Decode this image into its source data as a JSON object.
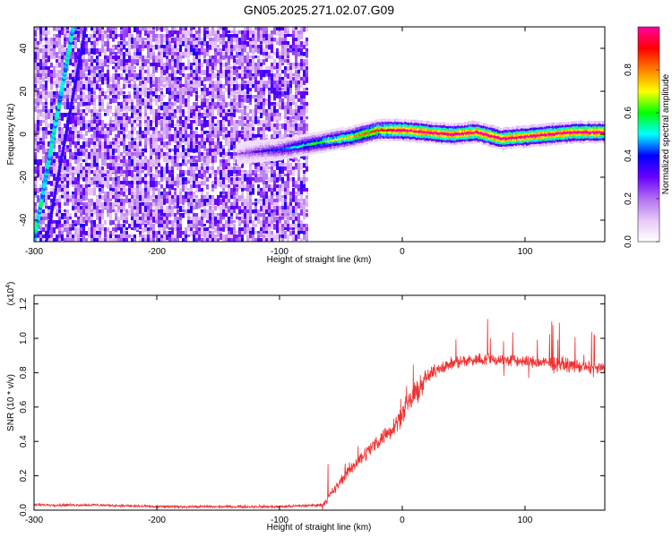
{
  "figure": {
    "title": "GN05.2025.271.02.07.G09"
  },
  "chart_data": [
    {
      "type": "heatmap",
      "title": "GN05.2025.271.02.07.G09",
      "xlabel": "Height of straight line (km)",
      "ylabel": "Frequency (Hz)",
      "xlim": [
        -300,
        165
      ],
      "ylim": [
        -50,
        50
      ],
      "x_ticks": [
        "-300",
        "-200",
        "-100",
        "0",
        "100"
      ],
      "y_ticks": [
        "-40",
        "-20",
        "0",
        "20",
        "40"
      ],
      "colorbar": {
        "label": "Normalized spectral amplitude",
        "range": [
          0,
          1
        ],
        "ticks": [
          "0.0",
          "0.2",
          "0.4",
          "0.6",
          "0.8"
        ],
        "colors": [
          "#ffffff",
          "#e8c8f8",
          "#b070f0",
          "#6a00ff",
          "#0000ff",
          "#00ffff",
          "#00ff00",
          "#ffff00",
          "#ff8000",
          "#ff0000",
          "#ff00a0"
        ]
      },
      "noise_region_x": [
        -300,
        -78
      ],
      "ridge": [
        {
          "x": -135,
          "y": -9
        },
        {
          "x": -120,
          "y": -8
        },
        {
          "x": -100,
          "y": -7
        },
        {
          "x": -80,
          "y": -5
        },
        {
          "x": -60,
          "y": -3
        },
        {
          "x": -40,
          "y": -1
        },
        {
          "x": -20,
          "y": 2
        },
        {
          "x": 0,
          "y": 2
        },
        {
          "x": 20,
          "y": 1
        },
        {
          "x": 40,
          "y": 0
        },
        {
          "x": 60,
          "y": 1
        },
        {
          "x": 80,
          "y": -2
        },
        {
          "x": 100,
          "y": -1
        },
        {
          "x": 120,
          "y": 0
        },
        {
          "x": 140,
          "y": 1
        },
        {
          "x": 165,
          "y": 1
        }
      ],
      "diagonal_streak": [
        {
          "x": -300,
          "y": -50
        },
        {
          "x": -268,
          "y": 50
        }
      ]
    },
    {
      "type": "line",
      "xlabel": "Height of straight line (km)",
      "ylabel": "SNR (10 * v/v)",
      "y_multiplier_label": "(x10",
      "y_multiplier_exp": "4",
      "xlim": [
        -300,
        165
      ],
      "ylim": [
        0,
        1.25
      ],
      "x_ticks": [
        "-300",
        "-200",
        "-100",
        "0",
        "100"
      ],
      "y_ticks": [
        "0.0",
        "0.2",
        "0.4",
        "0.6",
        "0.8",
        "1.0",
        "1.2"
      ],
      "series_color": "#f03030",
      "envelope": [
        {
          "x": -300,
          "y": 0.03
        },
        {
          "x": -250,
          "y": 0.03
        },
        {
          "x": -200,
          "y": 0.02
        },
        {
          "x": -150,
          "y": 0.02
        },
        {
          "x": -100,
          "y": 0.02
        },
        {
          "x": -65,
          "y": 0.03
        },
        {
          "x": -55,
          "y": 0.12
        },
        {
          "x": -45,
          "y": 0.22
        },
        {
          "x": -30,
          "y": 0.33
        },
        {
          "x": -20,
          "y": 0.4
        },
        {
          "x": -10,
          "y": 0.46
        },
        {
          "x": 0,
          "y": 0.56
        },
        {
          "x": 10,
          "y": 0.67
        },
        {
          "x": 20,
          "y": 0.77
        },
        {
          "x": 30,
          "y": 0.83
        },
        {
          "x": 50,
          "y": 0.87
        },
        {
          "x": 70,
          "y": 0.88
        },
        {
          "x": 90,
          "y": 0.87
        },
        {
          "x": 110,
          "y": 0.86
        },
        {
          "x": 130,
          "y": 0.85
        },
        {
          "x": 150,
          "y": 0.83
        },
        {
          "x": 165,
          "y": 0.82
        }
      ]
    }
  ]
}
